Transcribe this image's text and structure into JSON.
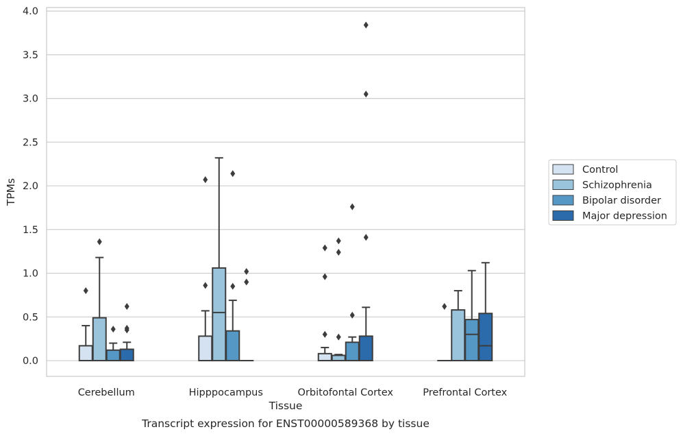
{
  "chart_data": {
    "type": "box",
    "caption": "Transcript expression for ENST00000589368 by tissue",
    "xlabel": "Tissue",
    "ylabel": "TPMs",
    "ylim": [
      -0.18,
      4.04
    ],
    "yticks": [
      0.0,
      0.5,
      1.0,
      1.5,
      2.0,
      2.5,
      3.0,
      3.5,
      4.0
    ],
    "ytick_labels": [
      "0.0",
      "0.5",
      "1.0",
      "1.5",
      "2.0",
      "2.5",
      "3.0",
      "3.5",
      "4.0"
    ],
    "grid": "horizontal",
    "legend_position": "right",
    "categories": [
      "Cerebellum",
      "Hipppocampus",
      "Orbitofontal Cortex",
      "Prefrontal Cortex"
    ],
    "series": [
      {
        "name": "Control",
        "color": "#d4e2f1",
        "boxes": [
          {
            "whislo": 0.0,
            "q1": 0.0,
            "med": 0.0,
            "q3": 0.17,
            "whishi": 0.4,
            "fliers": [
              0.8
            ]
          },
          {
            "whislo": 0.0,
            "q1": 0.0,
            "med": 0.0,
            "q3": 0.28,
            "whishi": 0.57,
            "fliers": [
              0.86,
              2.07
            ]
          },
          {
            "whislo": 0.0,
            "q1": 0.0,
            "med": 0.0,
            "q3": 0.08,
            "whishi": 0.15,
            "fliers": [
              0.3,
              0.96,
              1.29
            ]
          },
          {
            "whislo": 0.0,
            "q1": 0.0,
            "med": 0.0,
            "q3": 0.0,
            "whishi": 0.0,
            "fliers": [
              0.62
            ]
          }
        ]
      },
      {
        "name": "Schizophrenia",
        "color": "#9ac3dc",
        "boxes": [
          {
            "whislo": 0.0,
            "q1": 0.0,
            "med": 0.0,
            "q3": 0.49,
            "whishi": 1.18,
            "fliers": [
              1.36
            ]
          },
          {
            "whislo": 0.0,
            "q1": 0.0,
            "med": 0.55,
            "q3": 1.06,
            "whishi": 2.32,
            "fliers": []
          },
          {
            "whislo": 0.0,
            "q1": 0.0,
            "med": 0.0,
            "q3": 0.06,
            "whishi": 0.07,
            "fliers": [
              0.27,
              1.24,
              1.37
            ]
          },
          {
            "whislo": 0.0,
            "q1": 0.0,
            "med": 0.0,
            "q3": 0.58,
            "whishi": 0.8,
            "fliers": []
          }
        ]
      },
      {
        "name": "Bipolar disorder",
        "color": "#5597c5",
        "boxes": [
          {
            "whislo": 0.0,
            "q1": 0.0,
            "med": 0.0,
            "q3": 0.12,
            "whishi": 0.2,
            "fliers": [
              0.36
            ]
          },
          {
            "whislo": 0.0,
            "q1": 0.0,
            "med": 0.0,
            "q3": 0.34,
            "whishi": 0.69,
            "fliers": [
              0.85,
              2.14
            ]
          },
          {
            "whislo": 0.0,
            "q1": 0.0,
            "med": 0.0,
            "q3": 0.21,
            "whishi": 0.27,
            "fliers": [
              0.52,
              1.76
            ]
          },
          {
            "whislo": 0.0,
            "q1": 0.0,
            "med": 0.3,
            "q3": 0.47,
            "whishi": 1.03,
            "fliers": []
          }
        ]
      },
      {
        "name": "Major depression",
        "color": "#2b6aab",
        "boxes": [
          {
            "whislo": 0.0,
            "q1": 0.0,
            "med": 0.0,
            "q3": 0.13,
            "whishi": 0.21,
            "fliers": [
              0.35,
              0.37,
              0.62
            ]
          },
          {
            "whislo": 0.0,
            "q1": 0.0,
            "med": 0.0,
            "q3": 0.0,
            "whishi": 0.0,
            "fliers": [
              0.9,
              1.02
            ]
          },
          {
            "whislo": 0.0,
            "q1": 0.0,
            "med": 0.0,
            "q3": 0.28,
            "whishi": 0.61,
            "fliers": [
              1.41,
              3.05,
              3.84
            ]
          },
          {
            "whislo": 0.0,
            "q1": 0.0,
            "med": 0.17,
            "q3": 0.54,
            "whishi": 1.12,
            "fliers": []
          }
        ]
      }
    ]
  }
}
